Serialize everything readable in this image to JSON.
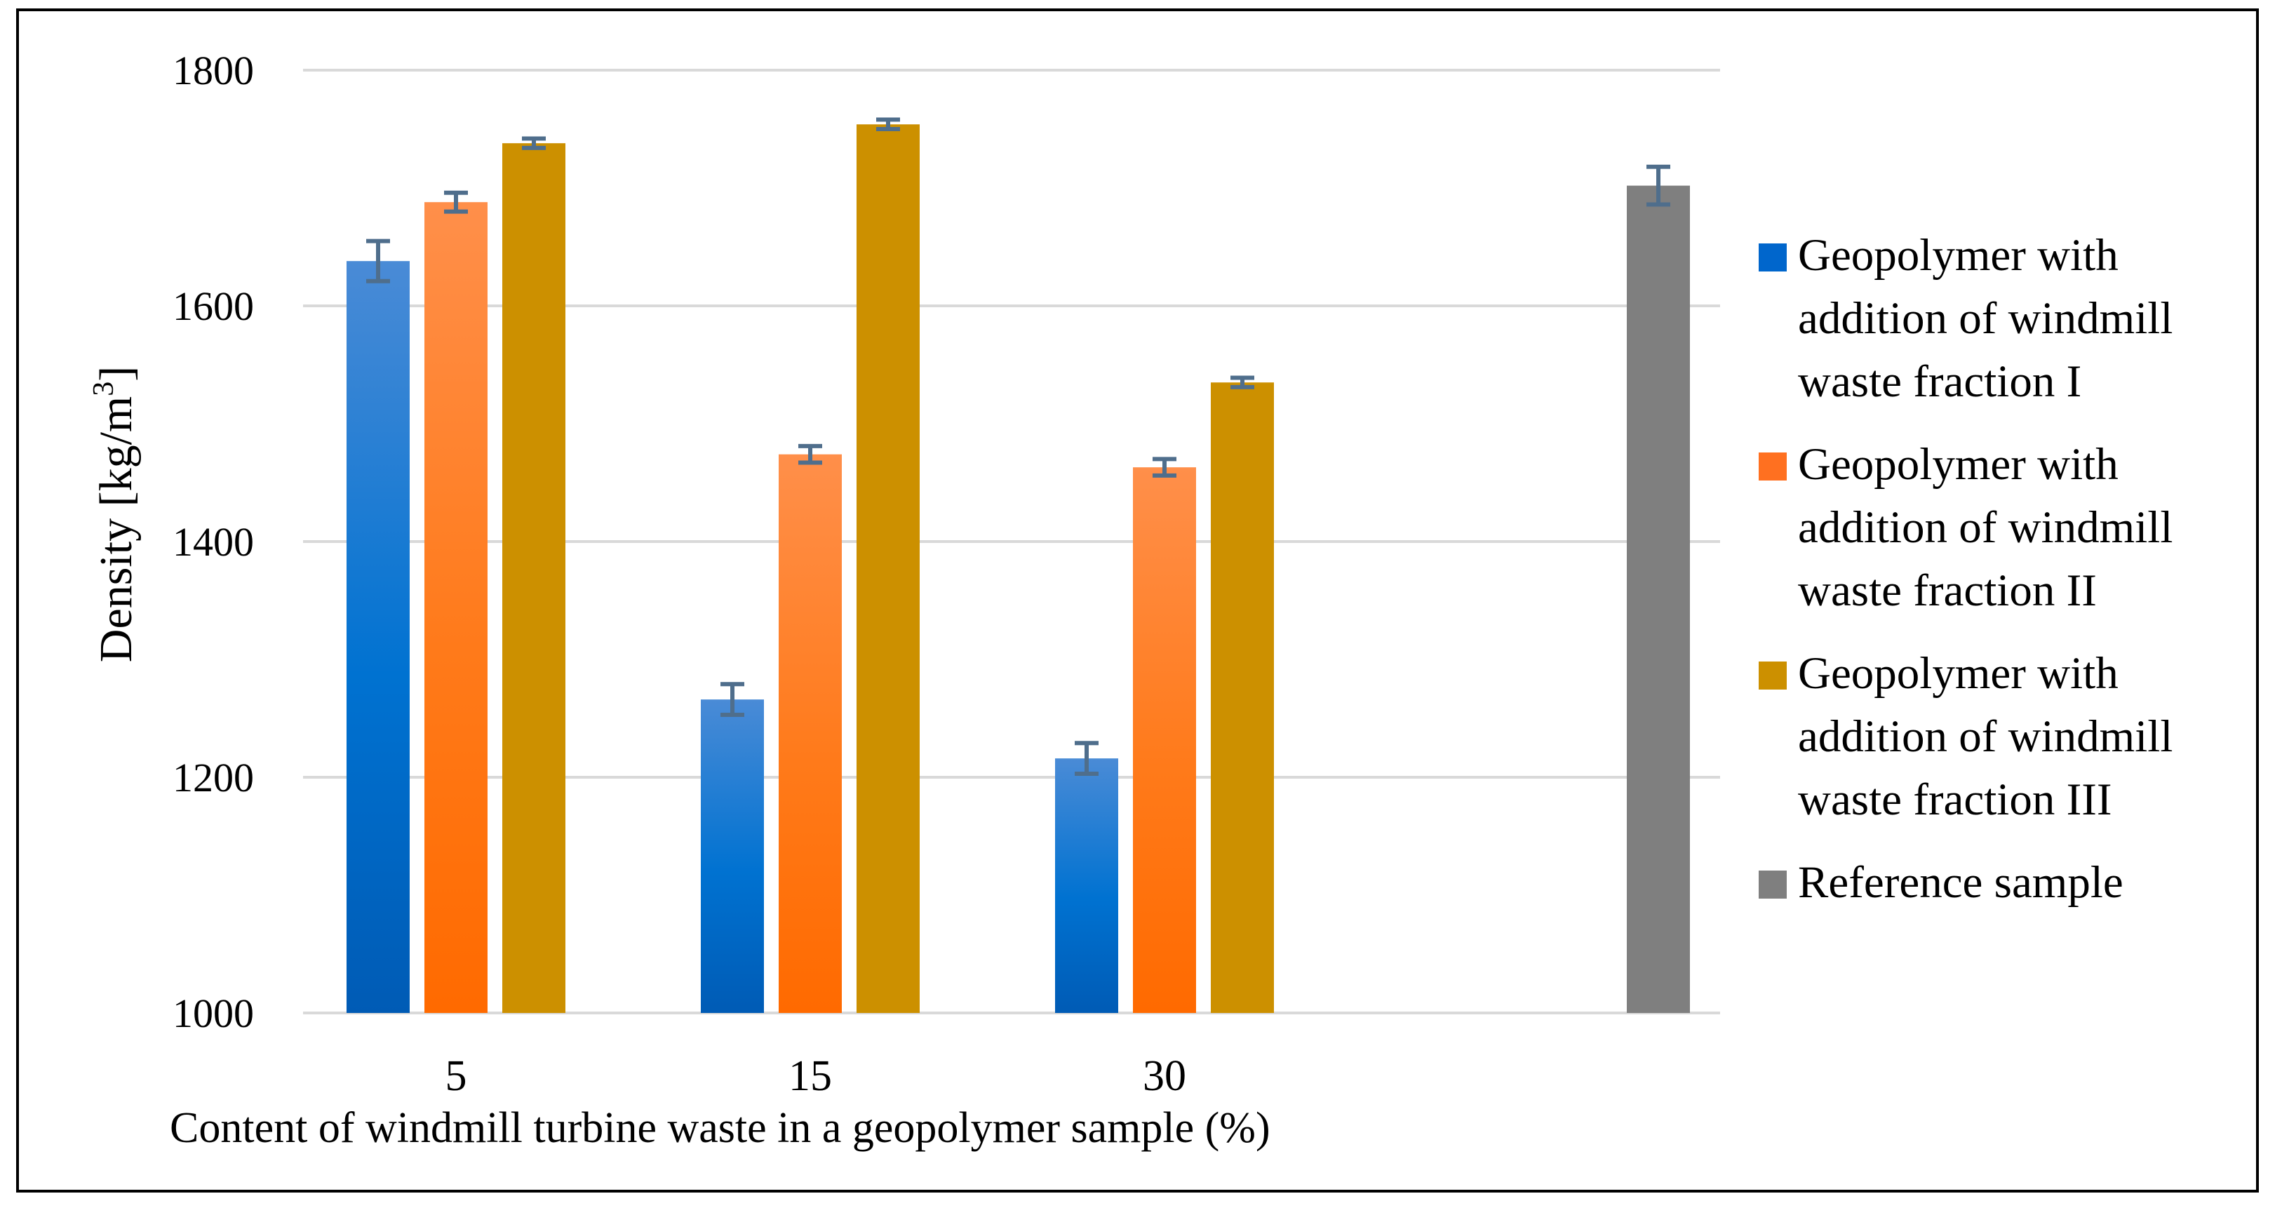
{
  "chart_data": {
    "type": "bar",
    "categories": [
      "5",
      "15",
      "30",
      ""
    ],
    "series": [
      {
        "name": "Geopolymer with addition of windmill waste fraction I",
        "color": "#0070C0",
        "values": [
          1638,
          1266,
          1216,
          null
        ],
        "errors": [
          17,
          13,
          13,
          null
        ]
      },
      {
        "name": "Geopolymer with addition of windmill waste fraction II",
        "color": "#FF7F2A",
        "values": [
          1688,
          1474,
          1463,
          null
        ],
        "errors": [
          8,
          7,
          7,
          null
        ]
      },
      {
        "name": "Geopolymer with addition of windmill waste fraction III",
        "color": "#CC9000",
        "values": [
          1738,
          1754,
          1535,
          null
        ],
        "errors": [
          4,
          4,
          4,
          null
        ]
      },
      {
        "name": "Reference sample",
        "color": "#7F7F7F",
        "values": [
          null,
          null,
          null,
          1702
        ],
        "errors": [
          null,
          null,
          null,
          16
        ]
      }
    ],
    "ylabel": "Density [kg/m3]",
    "ylabel_main": "Density [kg/m",
    "ylabel_sup": "3",
    "ylabel_end": "]",
    "xlabel": "Content of windmill turbine waste in a geopolymer sample (%)",
    "ylim": [
      1000,
      1800
    ],
    "yticks": [
      1000,
      1200,
      1400,
      1600,
      1800
    ],
    "grid": true,
    "legend_position": "right",
    "errorbar_color": "#4F6E8C"
  }
}
